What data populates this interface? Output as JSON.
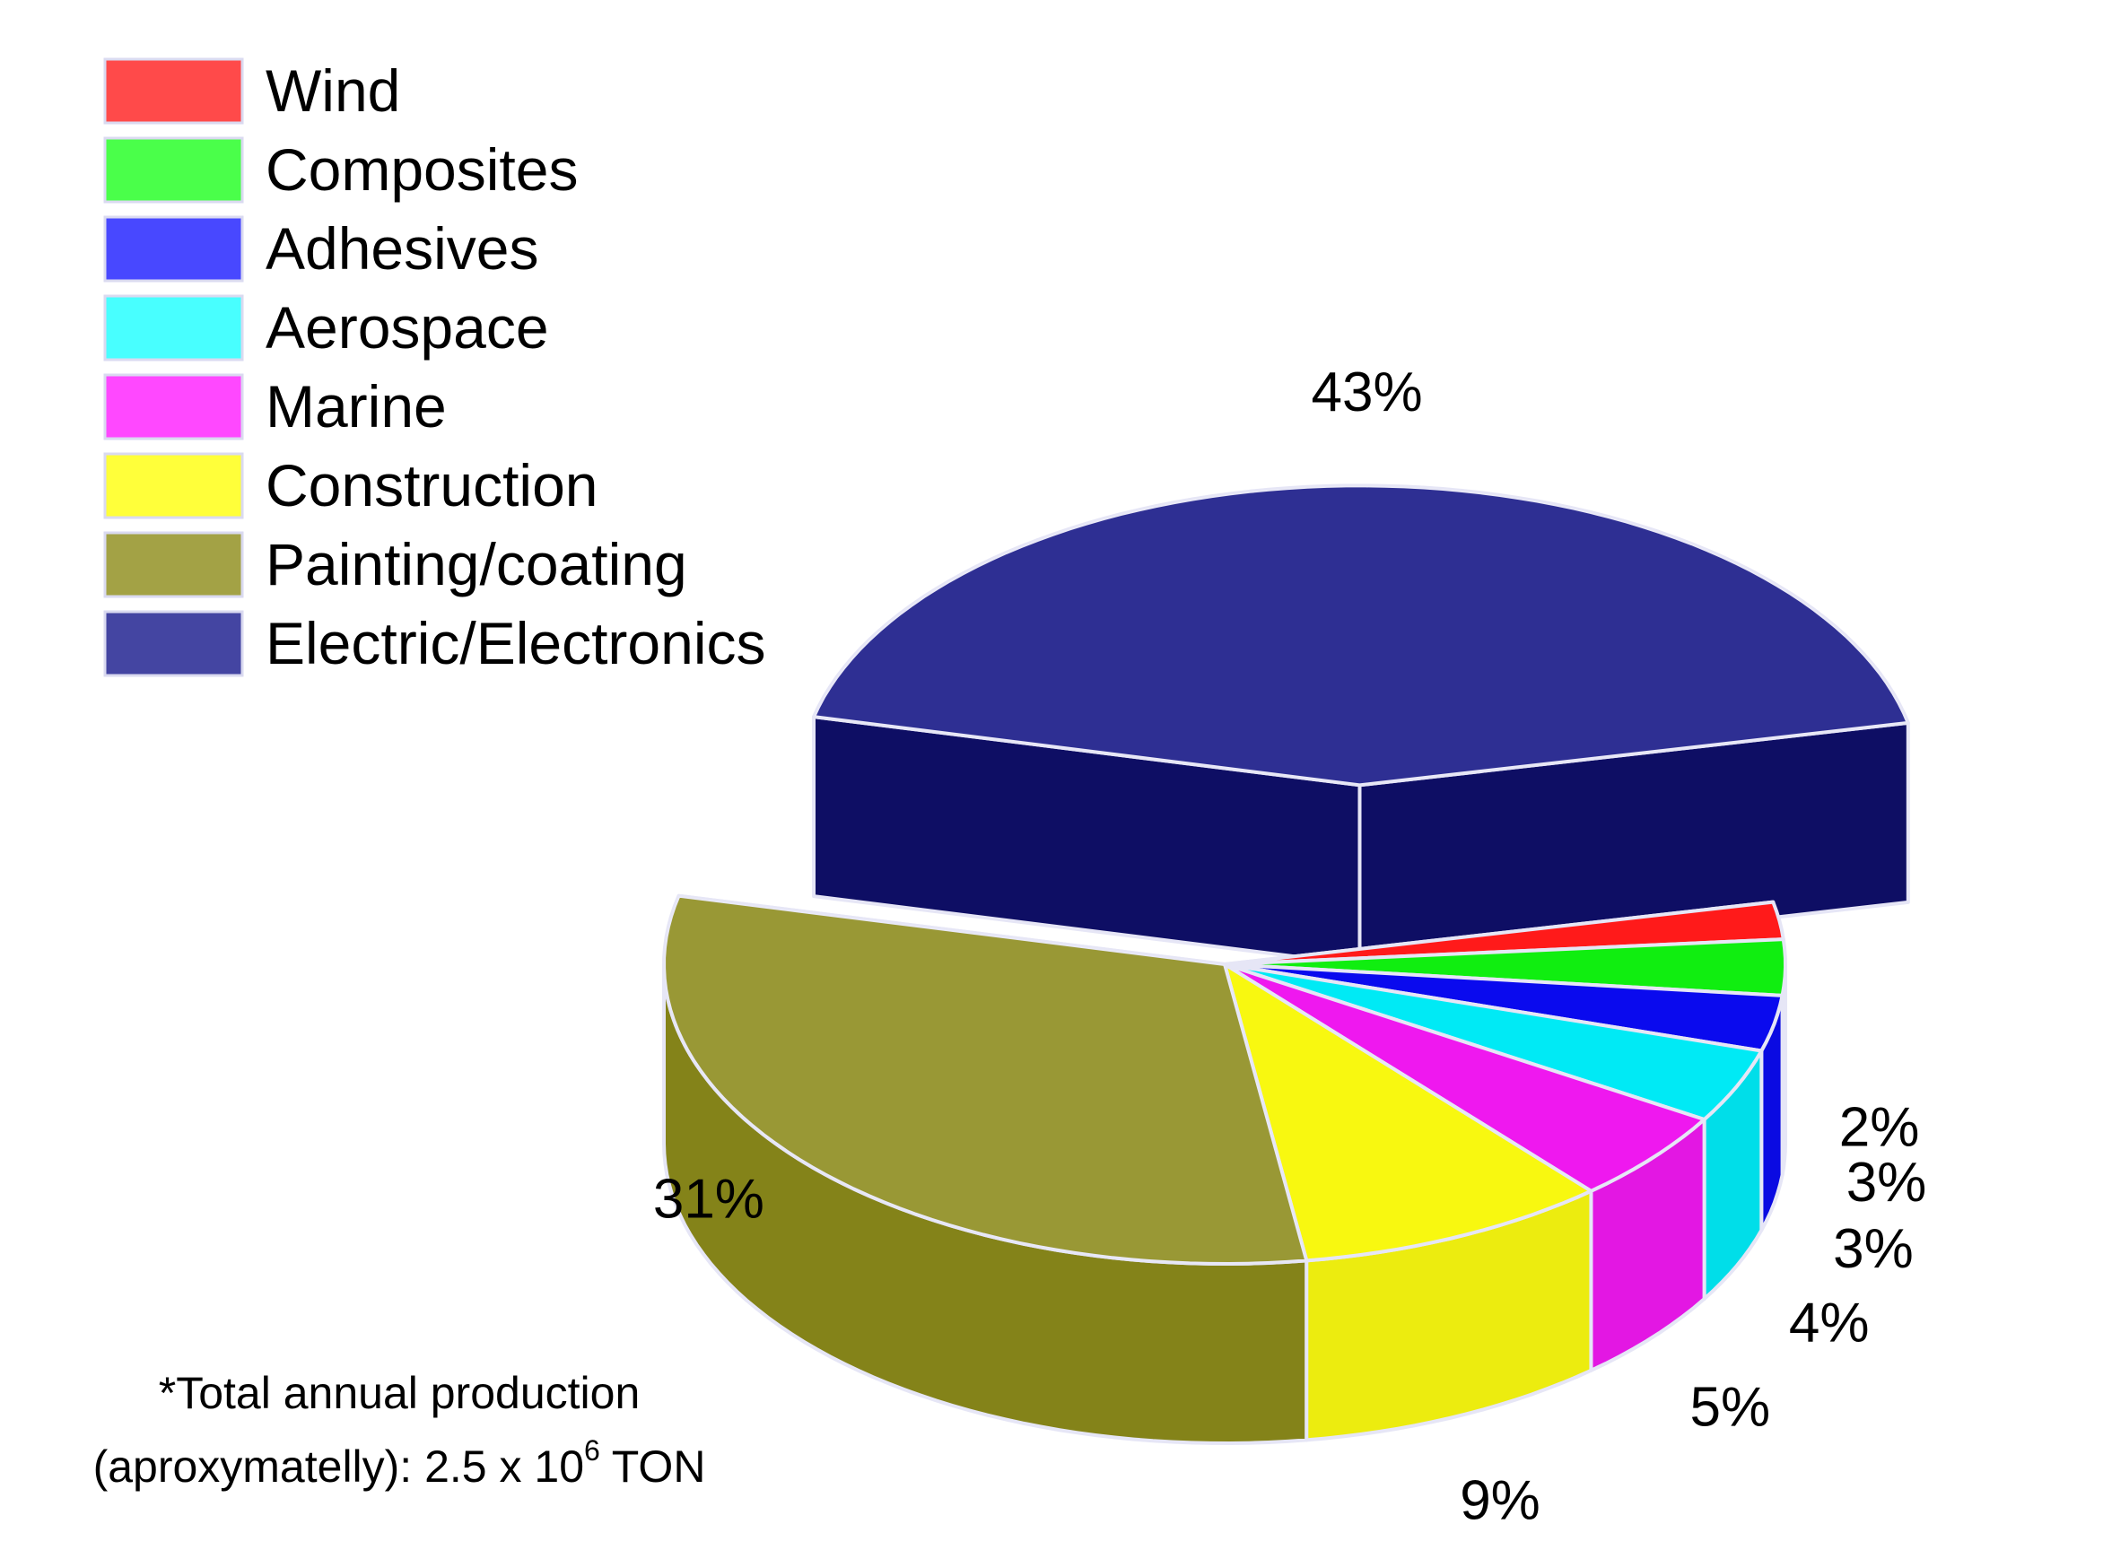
{
  "chart_data": {
    "type": "pie",
    "style": "3d-exploded",
    "categories": [
      "Wind",
      "Composites",
      "Adhesives",
      "Aerospace",
      "Marine",
      "Construction",
      "Painting/coating",
      "Electric/Electronics"
    ],
    "values": [
      2,
      3,
      3,
      4,
      5,
      9,
      31,
      43
    ],
    "value_labels": [
      "2%",
      "3%",
      "3%",
      "4%",
      "5%",
      "9%",
      "31%",
      "43%"
    ],
    "colors": [
      "#ff1a1a",
      "#10ee10",
      "#0a0aee",
      "#00eaf5",
      "#ef18ef",
      "#f8f810",
      "#8b8a1a",
      "#121385"
    ],
    "legend_colors": [
      "#ff4a4a",
      "#4aff4a",
      "#4848ff",
      "#48ffff",
      "#ff48ff",
      "#ffff3a",
      "#a3a245",
      "#4445a2"
    ],
    "legend_position": "top-left",
    "exploded": [
      "Electric/Electronics"
    ]
  },
  "note": {
    "line1": "*Total annual production",
    "line2_prefix": "(aproxymatelly): 2.5 x 10",
    "line2_exponent": "6",
    "line2_suffix": " TON"
  }
}
